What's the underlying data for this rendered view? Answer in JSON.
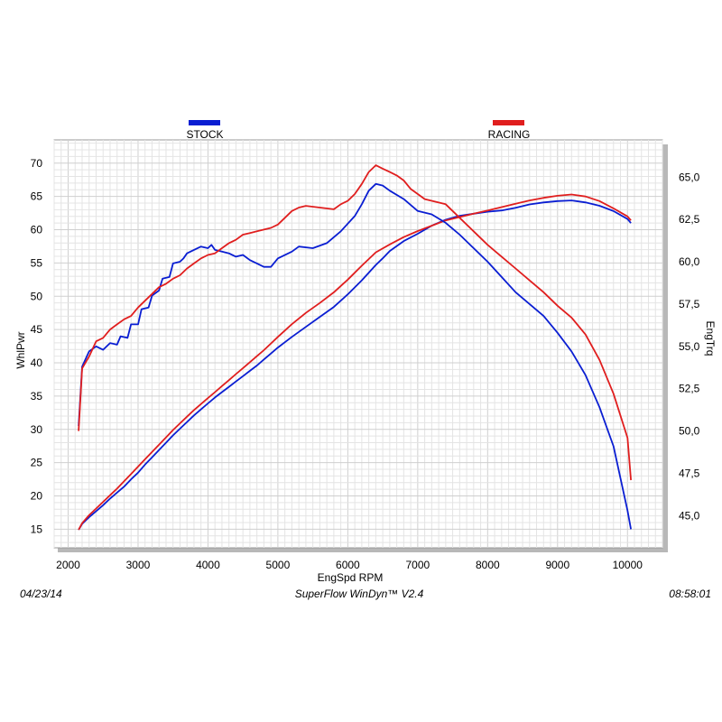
{
  "chart_data": {
    "type": "line",
    "x_axis": {
      "label": "EngSpd  RPM",
      "range": [
        1800,
        10500
      ],
      "ticks": [
        2000,
        3000,
        4000,
        5000,
        6000,
        7000,
        8000,
        9000,
        10000
      ]
    },
    "y_left": {
      "label": "WhlPwr",
      "range": [
        12.2,
        73.5
      ],
      "ticks": [
        15,
        20,
        25,
        30,
        35,
        40,
        45,
        50,
        55,
        60,
        65,
        70
      ]
    },
    "y_right": {
      "label": "EngTrq",
      "range": [
        43.1,
        67.2
      ],
      "ticks": [
        "45,0",
        "47,5",
        "50,0",
        "52,5",
        "55,0",
        "57,5",
        "60,0",
        "62,5",
        "65,0"
      ]
    },
    "grid": true,
    "legend": [
      {
        "name": "STOCK",
        "color": "#0a1ed2"
      },
      {
        "name": "RACING",
        "color": "#e01e1e"
      }
    ],
    "series": [
      {
        "name": "STOCK",
        "quantity": "WhlPwr",
        "axis": "left",
        "color": "#0a1ed2",
        "points": [
          [
            2150,
            14.9
          ],
          [
            2200,
            15.8
          ],
          [
            2300,
            16.8
          ],
          [
            2400,
            17.7
          ],
          [
            2500,
            18.6
          ],
          [
            2600,
            19.6
          ],
          [
            2700,
            20.5
          ],
          [
            2800,
            21.4
          ],
          [
            2900,
            22.5
          ],
          [
            3000,
            23.5
          ],
          [
            3100,
            24.7
          ],
          [
            3200,
            25.8
          ],
          [
            3300,
            26.9
          ],
          [
            3400,
            28.0
          ],
          [
            3500,
            29.1
          ],
          [
            3600,
            30.1
          ],
          [
            3700,
            31.1
          ],
          [
            3800,
            32.1
          ],
          [
            3900,
            33.0
          ],
          [
            4000,
            33.9
          ],
          [
            4100,
            34.8
          ],
          [
            4200,
            35.6
          ],
          [
            4300,
            36.4
          ],
          [
            4400,
            37.2
          ],
          [
            4500,
            38.0
          ],
          [
            4600,
            38.8
          ],
          [
            4700,
            39.6
          ],
          [
            4800,
            40.5
          ],
          [
            4900,
            41.4
          ],
          [
            5000,
            42.3
          ],
          [
            5200,
            43.9
          ],
          [
            5400,
            45.4
          ],
          [
            5600,
            46.9
          ],
          [
            5800,
            48.4
          ],
          [
            6000,
            50.3
          ],
          [
            6200,
            52.4
          ],
          [
            6400,
            54.7
          ],
          [
            6500,
            55.7
          ],
          [
            6600,
            56.8
          ],
          [
            6800,
            58.3
          ],
          [
            7000,
            59.4
          ],
          [
            7200,
            60.6
          ],
          [
            7400,
            61.5
          ],
          [
            7600,
            62.1
          ],
          [
            7800,
            62.4
          ],
          [
            8000,
            62.7
          ],
          [
            8200,
            62.9
          ],
          [
            8400,
            63.3
          ],
          [
            8600,
            63.8
          ],
          [
            8800,
            64.1
          ],
          [
            9000,
            64.3
          ],
          [
            9200,
            64.4
          ],
          [
            9400,
            64.1
          ],
          [
            9600,
            63.6
          ],
          [
            9800,
            62.8
          ],
          [
            10000,
            61.6
          ],
          [
            10050,
            61.0
          ]
        ]
      },
      {
        "name": "RACING",
        "quantity": "WhlPwr",
        "axis": "left",
        "color": "#e01e1e",
        "points": [
          [
            2150,
            14.9
          ],
          [
            2200,
            15.9
          ],
          [
            2300,
            17.1
          ],
          [
            2400,
            18.1
          ],
          [
            2500,
            19.1
          ],
          [
            2600,
            20.1
          ],
          [
            2700,
            21.1
          ],
          [
            2800,
            22.2
          ],
          [
            2900,
            23.3
          ],
          [
            3000,
            24.4
          ],
          [
            3100,
            25.5
          ],
          [
            3200,
            26.6
          ],
          [
            3300,
            27.7
          ],
          [
            3400,
            28.8
          ],
          [
            3500,
            29.9
          ],
          [
            3600,
            30.9
          ],
          [
            3700,
            31.9
          ],
          [
            3800,
            32.9
          ],
          [
            3900,
            33.8
          ],
          [
            4000,
            34.7
          ],
          [
            4100,
            35.6
          ],
          [
            4200,
            36.5
          ],
          [
            4300,
            37.4
          ],
          [
            4400,
            38.3
          ],
          [
            4500,
            39.2
          ],
          [
            4600,
            40.1
          ],
          [
            4700,
            41.0
          ],
          [
            4800,
            41.9
          ],
          [
            4900,
            42.9
          ],
          [
            5000,
            43.9
          ],
          [
            5200,
            45.8
          ],
          [
            5400,
            47.5
          ],
          [
            5600,
            49.0
          ],
          [
            5800,
            50.6
          ],
          [
            6000,
            52.5
          ],
          [
            6200,
            54.6
          ],
          [
            6400,
            56.6
          ],
          [
            6600,
            57.8
          ],
          [
            6800,
            58.9
          ],
          [
            7000,
            59.8
          ],
          [
            7200,
            60.6
          ],
          [
            7400,
            61.4
          ],
          [
            7600,
            61.9
          ],
          [
            7800,
            62.4
          ],
          [
            8000,
            62.9
          ],
          [
            8200,
            63.4
          ],
          [
            8400,
            63.9
          ],
          [
            8600,
            64.4
          ],
          [
            8800,
            64.8
          ],
          [
            9000,
            65.1
          ],
          [
            9200,
            65.3
          ],
          [
            9400,
            65.0
          ],
          [
            9600,
            64.3
          ],
          [
            9800,
            63.2
          ],
          [
            10000,
            62.0
          ],
          [
            10050,
            61.4
          ]
        ]
      },
      {
        "name": "STOCK",
        "quantity": "EngTrq",
        "axis": "right",
        "color": "#0a1ed2",
        "points": [
          [
            2150,
            50.3
          ],
          [
            2200,
            53.8
          ],
          [
            2300,
            54.7
          ],
          [
            2400,
            55.0
          ],
          [
            2500,
            54.8
          ],
          [
            2600,
            55.2
          ],
          [
            2700,
            55.1
          ],
          [
            2750,
            55.6
          ],
          [
            2850,
            55.5
          ],
          [
            2900,
            56.3
          ],
          [
            3000,
            56.3
          ],
          [
            3050,
            57.2
          ],
          [
            3150,
            57.3
          ],
          [
            3200,
            58.0
          ],
          [
            3300,
            58.3
          ],
          [
            3350,
            59.0
          ],
          [
            3450,
            59.1
          ],
          [
            3500,
            59.9
          ],
          [
            3600,
            60.0
          ],
          [
            3650,
            60.2
          ],
          [
            3700,
            60.5
          ],
          [
            3800,
            60.7
          ],
          [
            3900,
            60.9
          ],
          [
            4000,
            60.8
          ],
          [
            4050,
            61.0
          ],
          [
            4100,
            60.7
          ],
          [
            4200,
            60.6
          ],
          [
            4300,
            60.5
          ],
          [
            4400,
            60.3
          ],
          [
            4500,
            60.4
          ],
          [
            4600,
            60.1
          ],
          [
            4700,
            59.9
          ],
          [
            4800,
            59.7
          ],
          [
            4900,
            59.7
          ],
          [
            5000,
            60.2
          ],
          [
            5200,
            60.6
          ],
          [
            5300,
            60.9
          ],
          [
            5500,
            60.8
          ],
          [
            5700,
            61.1
          ],
          [
            5900,
            61.8
          ],
          [
            6100,
            62.7
          ],
          [
            6200,
            63.4
          ],
          [
            6300,
            64.2
          ],
          [
            6400,
            64.6
          ],
          [
            6500,
            64.5
          ],
          [
            6600,
            64.2
          ],
          [
            6800,
            63.7
          ],
          [
            7000,
            63.0
          ],
          [
            7200,
            62.8
          ],
          [
            7400,
            62.3
          ],
          [
            7600,
            61.6
          ],
          [
            7800,
            60.8
          ],
          [
            8000,
            60.0
          ],
          [
            8200,
            59.1
          ],
          [
            8400,
            58.2
          ],
          [
            8600,
            57.5
          ],
          [
            8800,
            56.8
          ],
          [
            9000,
            55.8
          ],
          [
            9200,
            54.7
          ],
          [
            9400,
            53.3
          ],
          [
            9600,
            51.4
          ],
          [
            9800,
            49.1
          ],
          [
            10000,
            45.3
          ],
          [
            10050,
            44.2
          ]
        ]
      },
      {
        "name": "RACING",
        "quantity": "EngTrq",
        "axis": "right",
        "color": "#e01e1e",
        "points": [
          [
            2150,
            50.0
          ],
          [
            2200,
            53.7
          ],
          [
            2300,
            54.4
          ],
          [
            2400,
            55.3
          ],
          [
            2500,
            55.5
          ],
          [
            2600,
            56.0
          ],
          [
            2700,
            56.3
          ],
          [
            2800,
            56.6
          ],
          [
            2900,
            56.8
          ],
          [
            3000,
            57.3
          ],
          [
            3100,
            57.7
          ],
          [
            3200,
            58.1
          ],
          [
            3300,
            58.5
          ],
          [
            3400,
            58.7
          ],
          [
            3500,
            59.0
          ],
          [
            3600,
            59.2
          ],
          [
            3700,
            59.6
          ],
          [
            3800,
            59.9
          ],
          [
            3900,
            60.2
          ],
          [
            4000,
            60.4
          ],
          [
            4100,
            60.5
          ],
          [
            4200,
            60.8
          ],
          [
            4300,
            61.1
          ],
          [
            4400,
            61.3
          ],
          [
            4500,
            61.6
          ],
          [
            4600,
            61.7
          ],
          [
            4700,
            61.8
          ],
          [
            4800,
            61.9
          ],
          [
            4900,
            62.0
          ],
          [
            5000,
            62.2
          ],
          [
            5100,
            62.6
          ],
          [
            5200,
            63.0
          ],
          [
            5300,
            63.2
          ],
          [
            5400,
            63.3
          ],
          [
            5600,
            63.2
          ],
          [
            5800,
            63.1
          ],
          [
            5900,
            63.4
          ],
          [
            6000,
            63.6
          ],
          [
            6100,
            64.0
          ],
          [
            6200,
            64.6
          ],
          [
            6300,
            65.3
          ],
          [
            6400,
            65.7
          ],
          [
            6500,
            65.5
          ],
          [
            6600,
            65.3
          ],
          [
            6700,
            65.1
          ],
          [
            6800,
            64.8
          ],
          [
            6900,
            64.3
          ],
          [
            7000,
            64.0
          ],
          [
            7100,
            63.7
          ],
          [
            7200,
            63.6
          ],
          [
            7400,
            63.4
          ],
          [
            7600,
            62.6
          ],
          [
            7800,
            61.8
          ],
          [
            8000,
            61.0
          ],
          [
            8200,
            60.3
          ],
          [
            8400,
            59.6
          ],
          [
            8600,
            58.9
          ],
          [
            8800,
            58.2
          ],
          [
            9000,
            57.4
          ],
          [
            9200,
            56.7
          ],
          [
            9400,
            55.7
          ],
          [
            9600,
            54.2
          ],
          [
            9800,
            52.2
          ],
          [
            10000,
            49.6
          ],
          [
            10050,
            47.1
          ]
        ]
      }
    ]
  },
  "footer": {
    "date": "04/23/14",
    "software": "SuperFlow WinDyn™  V2.4",
    "time": "08:58:01"
  }
}
